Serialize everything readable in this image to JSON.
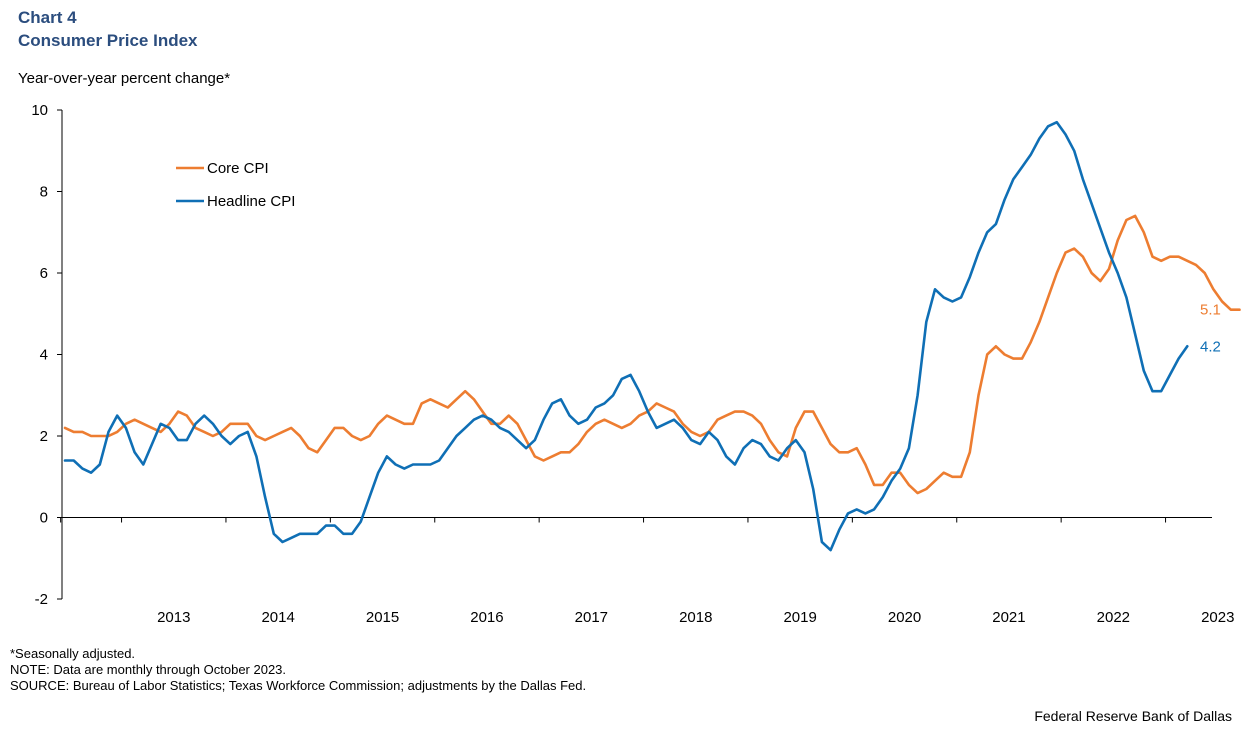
{
  "header": {
    "chart_number": "Chart 4",
    "title": "Consumer Price Index",
    "y_unit": "Year-over-year  percent change*"
  },
  "notes": {
    "line1": "*Seasonally adjusted.",
    "line2": "NOTE: Data are monthly through October 2023.",
    "line3": "SOURCE: Bureau of Labor Statistics; Texas Workforce Commission; adjustments by the Dallas Fed."
  },
  "credit": "Federal Reserve Bank of Dallas",
  "chart_data": {
    "type": "line",
    "title": "Consumer Price Index",
    "ylabel": "Year-over-year  percent change*",
    "xlabel": "",
    "ylim": [
      -2,
      10
    ],
    "yticks": [
      -2,
      0,
      2,
      4,
      6,
      8,
      10
    ],
    "xlim": [
      "2012-06",
      "2023-12"
    ],
    "xtick_labels": [
      "2013",
      "2014",
      "2015",
      "2016",
      "2017",
      "2018",
      "2019",
      "2020",
      "2021",
      "2022",
      "2023"
    ],
    "legend_position": "upper-left",
    "grid": false,
    "start_month": "2012-06",
    "series": [
      {
        "name": "Core CPI",
        "color": "#ed7d31",
        "end_label": "5.1",
        "values": [
          2.2,
          2.1,
          2.1,
          2.0,
          2.0,
          2.0,
          2.1,
          2.3,
          2.4,
          2.3,
          2.2,
          2.1,
          2.3,
          2.6,
          2.5,
          2.2,
          2.1,
          2.0,
          2.1,
          2.3,
          2.3,
          2.3,
          2.0,
          1.9,
          2.0,
          2.1,
          2.2,
          2.0,
          1.7,
          1.6,
          1.9,
          2.2,
          2.2,
          2.0,
          1.9,
          2.0,
          2.3,
          2.5,
          2.4,
          2.3,
          2.3,
          2.8,
          2.9,
          2.8,
          2.7,
          2.9,
          3.1,
          2.9,
          2.6,
          2.3,
          2.3,
          2.5,
          2.3,
          1.9,
          1.5,
          1.4,
          1.5,
          1.6,
          1.6,
          1.8,
          2.1,
          2.3,
          2.4,
          2.3,
          2.2,
          2.3,
          2.5,
          2.6,
          2.8,
          2.7,
          2.6,
          2.3,
          2.1,
          2.0,
          2.1,
          2.4,
          2.5,
          2.6,
          2.6,
          2.5,
          2.3,
          1.9,
          1.6,
          1.5,
          2.2,
          2.6,
          2.6,
          2.2,
          1.8,
          1.6,
          1.6,
          1.7,
          1.3,
          0.8,
          0.8,
          1.1,
          1.1,
          0.8,
          0.6,
          0.7,
          0.9,
          1.1,
          1.0,
          1.0,
          1.6,
          3.0,
          4.0,
          4.2,
          4.0,
          3.9,
          3.9,
          4.3,
          4.8,
          5.4,
          6.0,
          6.5,
          6.6,
          6.4,
          6.0,
          5.8,
          6.1,
          6.8,
          7.3,
          7.4,
          7.0,
          6.4,
          6.3,
          6.4,
          6.4,
          6.3,
          6.2,
          6.0,
          5.6,
          5.3,
          5.1,
          5.1
        ]
      },
      {
        "name": "Headline CPI",
        "color": "#0f6fb5",
        "end_label": "4.2",
        "values": [
          1.4,
          1.4,
          1.2,
          1.1,
          1.3,
          2.1,
          2.5,
          2.2,
          1.6,
          1.3,
          1.8,
          2.3,
          2.2,
          1.9,
          1.9,
          2.3,
          2.5,
          2.3,
          2.0,
          1.8,
          2.0,
          2.1,
          1.5,
          0.5,
          -0.4,
          -0.6,
          -0.5,
          -0.4,
          -0.4,
          -0.4,
          -0.2,
          -0.2,
          -0.4,
          -0.4,
          -0.1,
          0.5,
          1.1,
          1.5,
          1.3,
          1.2,
          1.3,
          1.3,
          1.3,
          1.4,
          1.7,
          2.0,
          2.2,
          2.4,
          2.5,
          2.4,
          2.2,
          2.1,
          1.9,
          1.7,
          1.9,
          2.4,
          2.8,
          2.9,
          2.5,
          2.3,
          2.4,
          2.7,
          2.8,
          3.0,
          3.4,
          3.5,
          3.1,
          2.6,
          2.2,
          2.3,
          2.4,
          2.2,
          1.9,
          1.8,
          2.1,
          1.9,
          1.5,
          1.3,
          1.7,
          1.9,
          1.8,
          1.5,
          1.4,
          1.7,
          1.9,
          1.6,
          0.7,
          -0.6,
          -0.8,
          -0.3,
          0.1,
          0.2,
          0.1,
          0.2,
          0.5,
          0.9,
          1.2,
          1.7,
          3.0,
          4.8,
          5.6,
          5.4,
          5.3,
          5.4,
          5.9,
          6.5,
          7.0,
          7.2,
          7.8,
          8.3,
          8.6,
          8.9,
          9.3,
          9.6,
          9.7,
          9.4,
          9.0,
          8.3,
          7.7,
          7.1,
          6.5,
          6.0,
          5.4,
          4.5,
          3.6,
          3.1,
          3.1,
          3.5,
          3.9,
          4.2
        ]
      }
    ]
  }
}
